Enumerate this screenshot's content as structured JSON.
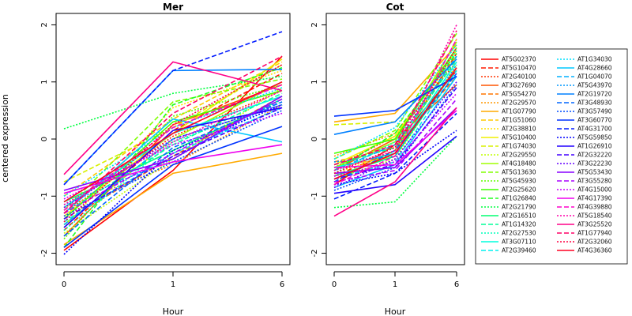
{
  "chart_data": [
    {
      "type": "line",
      "title": "Mer",
      "xlabel": "Hour",
      "ylabel": "centered expression",
      "x": [
        "0",
        "1",
        "6"
      ],
      "yticks": [
        "-2",
        "-1",
        "0",
        "1",
        "2"
      ],
      "ylim": [
        -2.2,
        2.2
      ],
      "grid": false,
      "series": [
        {
          "name": "AT5G02370",
          "color": "#ff0000",
          "dash": "solid",
          "values": [
            -1.95,
            -0.55,
            1.45
          ]
        },
        {
          "name": "AT5G10470",
          "color": "#ff1a00",
          "dash": "dashed",
          "values": [
            -1.6,
            0.15,
            1.15
          ]
        },
        {
          "name": "AT2G40100",
          "color": "#ff3300",
          "dash": "dotted",
          "values": [
            -1.3,
            0.05,
            0.85
          ]
        },
        {
          "name": "AT3G27690",
          "color": "#ff5500",
          "dash": "solid",
          "values": [
            -1.7,
            0.25,
            0.95
          ]
        },
        {
          "name": "AT5G54270",
          "color": "#ff7700",
          "dash": "dashed",
          "values": [
            -1.45,
            -0.3,
            0.75
          ]
        },
        {
          "name": "AT2G29570",
          "color": "#ff9900",
          "dash": "dotted",
          "values": [
            -1.2,
            -0.45,
            0.6
          ]
        },
        {
          "name": "AT1G07790",
          "color": "#ffaa00",
          "dash": "solid",
          "values": [
            -1.85,
            -0.6,
            -0.25
          ]
        },
        {
          "name": "AT1G51060",
          "color": "#ffc800",
          "dash": "dashed",
          "values": [
            -1.0,
            0.35,
            1.35
          ]
        },
        {
          "name": "AT2G38810",
          "color": "#ffe000",
          "dash": "dotted",
          "values": [
            -1.55,
            0.55,
            1.2
          ]
        },
        {
          "name": "AT5G10400",
          "color": "#f0f000",
          "dash": "solid",
          "values": [
            -1.35,
            0.1,
            1.4
          ]
        },
        {
          "name": "AT1G74030",
          "color": "#d8f000",
          "dash": "dashed",
          "values": [
            -0.75,
            0.2,
            1.3
          ]
        },
        {
          "name": "AT2G29550",
          "color": "#c0ff00",
          "dash": "dotted",
          "values": [
            -1.65,
            -0.35,
            0.9
          ]
        },
        {
          "name": "AT4G18480",
          "color": "#a0ff00",
          "dash": "solid",
          "values": [
            -1.5,
            0.0,
            1.0
          ]
        },
        {
          "name": "AT5G13630",
          "color": "#80ff00",
          "dash": "dashed",
          "values": [
            -1.25,
            0.65,
            1.05
          ]
        },
        {
          "name": "AT5G45930",
          "color": "#60ff00",
          "dash": "dotted",
          "values": [
            -1.75,
            0.4,
            0.95
          ]
        },
        {
          "name": "AT2G25620",
          "color": "#40ff00",
          "dash": "solid",
          "values": [
            -1.4,
            0.3,
            0.85
          ]
        },
        {
          "name": "AT1G26840",
          "color": "#20ff20",
          "dash": "dashed",
          "values": [
            -1.9,
            0.6,
            1.25
          ]
        },
        {
          "name": "AT2G21790",
          "color": "#00ff40",
          "dash": "dotted",
          "values": [
            0.18,
            0.8,
            1.1
          ]
        },
        {
          "name": "AT2G16510",
          "color": "#00ff70",
          "dash": "solid",
          "values": [
            -1.1,
            -0.2,
            0.7
          ]
        },
        {
          "name": "AT1G14320",
          "color": "#00ff99",
          "dash": "dashed",
          "values": [
            -1.3,
            -0.1,
            0.8
          ]
        },
        {
          "name": "AT2G27530",
          "color": "#00ffbb",
          "dash": "dotted",
          "values": [
            -1.6,
            -0.05,
            0.65
          ]
        },
        {
          "name": "AT3G07110",
          "color": "#00ffdd",
          "dash": "solid",
          "values": [
            -1.2,
            0.1,
            0.75
          ]
        },
        {
          "name": "AT2G39460",
          "color": "#00f0f0",
          "dash": "dashed",
          "values": [
            -1.45,
            -0.25,
            0.55
          ]
        },
        {
          "name": "AT1G34030",
          "color": "#00e0ff",
          "dash": "dotted",
          "values": [
            -1.0,
            0.2,
            0.9
          ]
        },
        {
          "name": "AT4G28660",
          "color": "#00c8ff",
          "dash": "solid",
          "values": [
            -1.3,
            0.35,
            -0.05
          ]
        },
        {
          "name": "AT1G04070",
          "color": "#00b0ff",
          "dash": "dashed",
          "values": [
            -1.5,
            0.0,
            0.6
          ]
        },
        {
          "name": "AT5G43970",
          "color": "#0099ff",
          "dash": "dotted",
          "values": [
            -1.15,
            -0.35,
            0.7
          ]
        },
        {
          "name": "AT2G19720",
          "color": "#0080ff",
          "dash": "solid",
          "values": [
            -0.8,
            1.2,
            1.22
          ]
        },
        {
          "name": "AT3G48930",
          "color": "#0066ff",
          "dash": "dashed",
          "values": [
            -1.7,
            -0.15,
            0.65
          ]
        },
        {
          "name": "AT3G57490",
          "color": "#004dff",
          "dash": "dotted",
          "values": [
            -1.35,
            -0.4,
            0.5
          ]
        },
        {
          "name": "AT3G60770",
          "color": "#0033ff",
          "dash": "solid",
          "values": [
            -1.9,
            -0.45,
            0.22
          ]
        },
        {
          "name": "AT4G31700",
          "color": "#001aff",
          "dash": "dashed",
          "values": [
            -0.8,
            1.2,
            1.88
          ]
        },
        {
          "name": "AT5G59850",
          "color": "#0000ff",
          "dash": "dotted",
          "values": [
            -2.02,
            -0.2,
            0.6
          ]
        },
        {
          "name": "AT1G26910",
          "color": "#2200ff",
          "dash": "solid",
          "values": [
            -1.55,
            0.15,
            0.55
          ]
        },
        {
          "name": "AT2G32220",
          "color": "#4400ff",
          "dash": "dashed",
          "values": [
            -1.4,
            -0.3,
            0.55
          ]
        },
        {
          "name": "AT3G22230",
          "color": "#6600ff",
          "dash": "dotted",
          "values": [
            -1.2,
            0.0,
            0.6
          ]
        },
        {
          "name": "AT5G53430",
          "color": "#8800ff",
          "dash": "solid",
          "values": [
            -0.9,
            -0.35,
            0.75
          ]
        },
        {
          "name": "AT3G55280",
          "color": "#aa00ff",
          "dash": "dashed",
          "values": [
            -1.3,
            -0.25,
            0.7
          ]
        },
        {
          "name": "AT4G15000",
          "color": "#cc00ff",
          "dash": "dotted",
          "values": [
            -1.05,
            -0.1,
            0.45
          ]
        },
        {
          "name": "AT4G17390",
          "color": "#ee00ee",
          "dash": "solid",
          "values": [
            -0.95,
            -0.4,
            -0.1
          ]
        },
        {
          "name": "AT4G39880",
          "color": "#ff00cc",
          "dash": "dashed",
          "values": [
            -1.25,
            0.2,
            0.95
          ]
        },
        {
          "name": "AT5G18540",
          "color": "#ff00aa",
          "dash": "dotted",
          "values": [
            -1.15,
            -0.05,
            0.85
          ]
        },
        {
          "name": "AT3G25520",
          "color": "#ff0088",
          "dash": "solid",
          "values": [
            -0.62,
            1.35,
            0.85
          ]
        },
        {
          "name": "AT1G77940",
          "color": "#ff0066",
          "dash": "dashed",
          "values": [
            -1.3,
            0.45,
            1.45
          ]
        },
        {
          "name": "AT2G32060",
          "color": "#ff0044",
          "dash": "dotted",
          "values": [
            -1.45,
            0.25,
            1.3
          ]
        },
        {
          "name": "AT4G36360",
          "color": "#ff0022",
          "dash": "solid",
          "values": [
            -1.1,
            0.1,
            1.0
          ]
        }
      ]
    },
    {
      "type": "line",
      "title": "Cot",
      "xlabel": "Hour",
      "ylabel": "",
      "x": [
        "0",
        "1",
        "6"
      ],
      "yticks": [
        "-2",
        "-1",
        "0",
        "1",
        "2"
      ],
      "ylim": [
        -2.2,
        2.2
      ],
      "grid": false,
      "series": [
        {
          "name": "AT5G02370",
          "color": "#ff0000",
          "dash": "solid",
          "values": [
            -0.8,
            -0.1,
            1.2
          ]
        },
        {
          "name": "AT5G10470",
          "color": "#ff1a00",
          "dash": "dashed",
          "values": [
            -0.65,
            -0.2,
            1.5
          ]
        },
        {
          "name": "AT2G40100",
          "color": "#ff3300",
          "dash": "dotted",
          "values": [
            -0.5,
            0.05,
            1.35
          ]
        },
        {
          "name": "AT3G27690",
          "color": "#ff5500",
          "dash": "solid",
          "values": [
            -0.55,
            0.0,
            0.95
          ]
        },
        {
          "name": "AT5G54270",
          "color": "#ff7700",
          "dash": "dashed",
          "values": [
            -0.4,
            -0.15,
            1.1
          ]
        },
        {
          "name": "AT2G29570",
          "color": "#ff9900",
          "dash": "dotted",
          "values": [
            -0.3,
            0.1,
            1.45
          ]
        },
        {
          "name": "AT1G07790",
          "color": "#ffaa00",
          "dash": "solid",
          "values": [
            0.3,
            0.45,
            1.65
          ]
        },
        {
          "name": "AT1G51060",
          "color": "#ffc800",
          "dash": "dashed",
          "values": [
            -0.5,
            -0.3,
            1.75
          ]
        },
        {
          "name": "AT2G38810",
          "color": "#ffe000",
          "dash": "dotted",
          "values": [
            -0.6,
            -0.25,
            1.6
          ]
        },
        {
          "name": "AT5G10400",
          "color": "#f0f000",
          "dash": "solid",
          "values": [
            -0.45,
            0.05,
            1.55
          ]
        },
        {
          "name": "AT1G74030",
          "color": "#d8f000",
          "dash": "dashed",
          "values": [
            0.25,
            0.3,
            1.4
          ]
        },
        {
          "name": "AT2G29550",
          "color": "#c0ff00",
          "dash": "dotted",
          "values": [
            -0.7,
            -0.35,
            1.3
          ]
        },
        {
          "name": "AT4G18480",
          "color": "#a0ff00",
          "dash": "solid",
          "values": [
            -0.5,
            -0.05,
            1.7
          ]
        },
        {
          "name": "AT5G13630",
          "color": "#80ff00",
          "dash": "dashed",
          "values": [
            -0.35,
            0.15,
            1.85
          ]
        },
        {
          "name": "AT5G45930",
          "color": "#60ff00",
          "dash": "dotted",
          "values": [
            -0.75,
            -0.2,
            1.45
          ]
        },
        {
          "name": "AT2G25620",
          "color": "#40ff00",
          "dash": "solid",
          "values": [
            -0.25,
            0.0,
            1.6
          ]
        },
        {
          "name": "AT1G26840",
          "color": "#20ff20",
          "dash": "dashed",
          "values": [
            -0.55,
            0.1,
            1.5
          ]
        },
        {
          "name": "AT2G21790",
          "color": "#00ff40",
          "dash": "dotted",
          "values": [
            -1.2,
            -1.1,
            0.05
          ]
        },
        {
          "name": "AT2G16510",
          "color": "#00ff70",
          "dash": "solid",
          "values": [
            -0.65,
            -0.3,
            1.25
          ]
        },
        {
          "name": "AT1G14320",
          "color": "#00ff99",
          "dash": "dashed",
          "values": [
            -0.45,
            -0.15,
            1.4
          ]
        },
        {
          "name": "AT2G27530",
          "color": "#00ffbb",
          "dash": "dotted",
          "values": [
            -0.6,
            -0.05,
            1.55
          ]
        },
        {
          "name": "AT3G07110",
          "color": "#00ffdd",
          "dash": "solid",
          "values": [
            -0.5,
            -0.25,
            1.35
          ]
        },
        {
          "name": "AT2G39460",
          "color": "#00f0f0",
          "dash": "dashed",
          "values": [
            -0.7,
            -0.4,
            1.2
          ]
        },
        {
          "name": "AT1G34030",
          "color": "#00e0ff",
          "dash": "dotted",
          "values": [
            -0.35,
            0.2,
            1.65
          ]
        },
        {
          "name": "AT4G28660",
          "color": "#00c8ff",
          "dash": "solid",
          "values": [
            -0.85,
            -0.45,
            1.1
          ]
        },
        {
          "name": "AT1G04070",
          "color": "#00b0ff",
          "dash": "dashed",
          "values": [
            -0.55,
            -0.1,
            1.45
          ]
        },
        {
          "name": "AT5G43970",
          "color": "#0099ff",
          "dash": "dotted",
          "values": [
            -0.4,
            -0.3,
            1.3
          ]
        },
        {
          "name": "AT2G19720",
          "color": "#0080ff",
          "dash": "solid",
          "values": [
            0.08,
            0.3,
            1.4
          ]
        },
        {
          "name": "AT3G48930",
          "color": "#0066ff",
          "dash": "dashed",
          "values": [
            -0.75,
            -0.2,
            1.15
          ]
        },
        {
          "name": "AT3G57490",
          "color": "#004dff",
          "dash": "dotted",
          "values": [
            -0.9,
            -0.5,
            0.95
          ]
        },
        {
          "name": "AT3G60770",
          "color": "#0033ff",
          "dash": "solid",
          "values": [
            0.4,
            0.5,
            1.1
          ]
        },
        {
          "name": "AT4G31700",
          "color": "#001aff",
          "dash": "dashed",
          "values": [
            -1.05,
            -0.6,
            0.45
          ]
        },
        {
          "name": "AT5G59850",
          "color": "#0000ff",
          "dash": "dotted",
          "values": [
            -0.8,
            -0.6,
            0.15
          ]
        },
        {
          "name": "AT1G26910",
          "color": "#2200ff",
          "dash": "solid",
          "values": [
            -0.95,
            -0.8,
            0.05
          ]
        },
        {
          "name": "AT2G32220",
          "color": "#4400ff",
          "dash": "dashed",
          "values": [
            -0.7,
            -0.45,
            0.9
          ]
        },
        {
          "name": "AT3G22230",
          "color": "#6600ff",
          "dash": "dotted",
          "values": [
            -0.85,
            -0.35,
            1.0
          ]
        },
        {
          "name": "AT5G53430",
          "color": "#8800ff",
          "dash": "solid",
          "values": [
            -0.6,
            -0.5,
            0.55
          ]
        },
        {
          "name": "AT3G55280",
          "color": "#aa00ff",
          "dash": "dashed",
          "values": [
            -0.75,
            -0.55,
            0.7
          ]
        },
        {
          "name": "AT4G15000",
          "color": "#cc00ff",
          "dash": "dotted",
          "values": [
            -0.65,
            -0.4,
            0.8
          ]
        },
        {
          "name": "AT4G17390",
          "color": "#ee00ee",
          "dash": "solid",
          "values": [
            -0.5,
            -0.45,
            0.5
          ]
        },
        {
          "name": "AT4G39880",
          "color": "#ff00cc",
          "dash": "dashed",
          "values": [
            -0.8,
            -0.3,
            1.75
          ]
        },
        {
          "name": "AT5G18540",
          "color": "#ff00aa",
          "dash": "dotted",
          "values": [
            -0.55,
            -0.2,
            2.0
          ]
        },
        {
          "name": "AT3G25520",
          "color": "#ff0088",
          "dash": "solid",
          "values": [
            -1.35,
            -0.75,
            0.55
          ]
        },
        {
          "name": "AT1G77940",
          "color": "#ff0066",
          "dash": "dashed",
          "values": [
            -0.45,
            -0.1,
            1.9
          ]
        },
        {
          "name": "AT2G32060",
          "color": "#ff0044",
          "dash": "dotted",
          "values": [
            -0.6,
            -0.15,
            1.6
          ]
        },
        {
          "name": "AT4G36360",
          "color": "#ff0022",
          "dash": "solid",
          "values": [
            -0.7,
            -0.25,
            1.25
          ]
        }
      ]
    }
  ],
  "legend": {
    "placement": "right",
    "columns": 2
  }
}
